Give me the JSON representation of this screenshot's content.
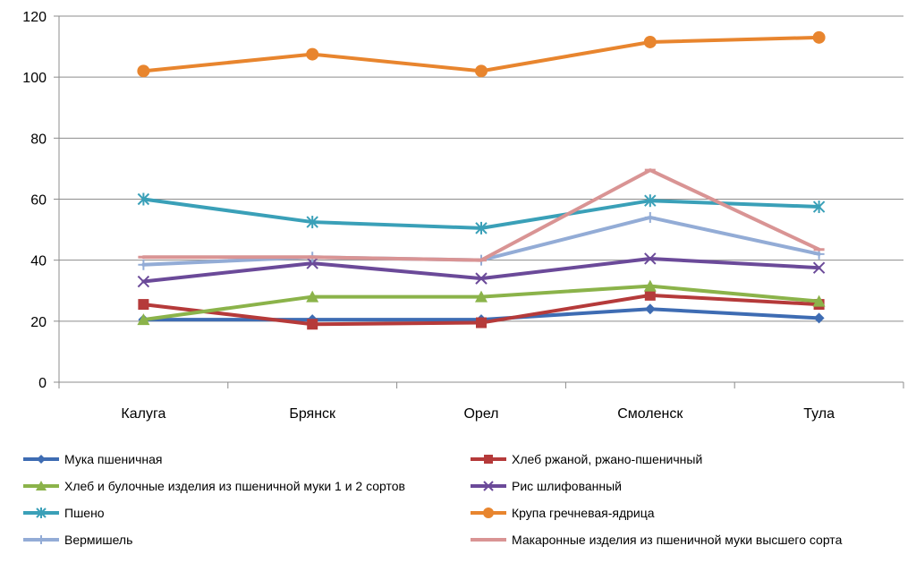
{
  "chart_data": {
    "type": "line",
    "categories": [
      "Калуга",
      "Брянск",
      "Орел",
      "Смоленск",
      "Тула"
    ],
    "ylim": [
      0,
      120
    ],
    "yticks": [
      0,
      20,
      40,
      60,
      80,
      100,
      120
    ],
    "grid": "horizontal",
    "legend_position": "bottom",
    "series": [
      {
        "name": "Мука пшеничная",
        "color": "#3e6cb3",
        "marker": "diamond",
        "values": [
          20.5,
          20.5,
          20.5,
          24,
          21
        ]
      },
      {
        "name": "Хлеб ржаной, ржано-пшеничный",
        "color": "#b53a3a",
        "marker": "square",
        "values": [
          25.5,
          19,
          19.5,
          28.5,
          25.5
        ]
      },
      {
        "name": "Хлеб и булочные изделия из пшеничной муки 1 и 2 сортов",
        "color": "#8bb34a",
        "marker": "triangle",
        "values": [
          20.5,
          28,
          28,
          31.5,
          26.5
        ]
      },
      {
        "name": "Рис шлифованный",
        "color": "#6b4a99",
        "marker": "x",
        "values": [
          33,
          39,
          34,
          40.5,
          37.5
        ]
      },
      {
        "name": "Пшено",
        "color": "#3aa0b8",
        "marker": "asterisk",
        "values": [
          60,
          52.5,
          50.5,
          59.5,
          57.5
        ]
      },
      {
        "name": "Крупа гречневая-ядрица",
        "color": "#e8852e",
        "marker": "circle",
        "values": [
          102,
          107.5,
          102,
          111.5,
          113
        ]
      },
      {
        "name": "Вермишель",
        "color": "#93acd6",
        "marker": "plus",
        "values": [
          38.5,
          41,
          40,
          54,
          42
        ]
      },
      {
        "name": "Макаронные изделия из пшеничной муки высшего сорта",
        "color": "#d99494",
        "marker": "dash",
        "values": [
          41,
          41,
          40,
          69.5,
          43.5
        ]
      }
    ]
  }
}
